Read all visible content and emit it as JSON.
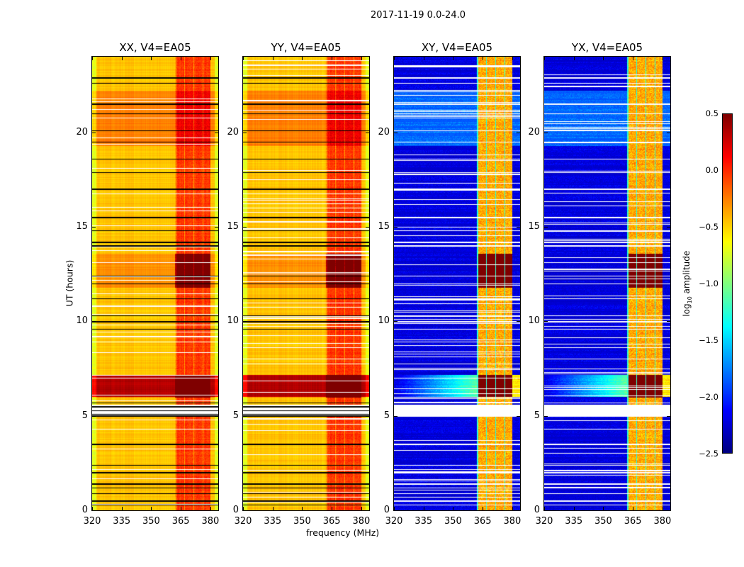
{
  "chart_data": {
    "type": "heatmap",
    "title": "2017-11-19 0.0-24.0",
    "xlabel": "frequency (MHz)",
    "ylabel": "UT (hours)",
    "xlim": [
      320,
      384
    ],
    "ylim": [
      0,
      24
    ],
    "x_ticks": [
      320,
      335,
      350,
      365,
      380
    ],
    "y_ticks": [
      0,
      5,
      10,
      15,
      20
    ],
    "panels": [
      {
        "name": "XX",
        "title": "XX, V4=EA05",
        "kind": "parallel"
      },
      {
        "name": "YY",
        "title": "YY, V4=EA05",
        "kind": "parallel"
      },
      {
        "name": "XY",
        "title": "XY, V4=EA05",
        "kind": "cross"
      },
      {
        "name": "YX",
        "title": "YX, V4=EA05",
        "kind": "cross"
      }
    ],
    "colorbar": {
      "label": "log",
      "label_sub": "10",
      "label_rest": " amplitude",
      "range": [
        -2.5,
        0.5
      ],
      "ticks": [
        "0.5",
        "0.0",
        "−0.5",
        "−1.0",
        "−1.5",
        "−2.0",
        "−2.5"
      ],
      "tick_values": [
        0.5,
        0.0,
        -0.5,
        -1.0,
        -1.5,
        -2.0,
        -2.5
      ],
      "colormap": "jet"
    },
    "features": {
      "rfi_band_mhz": [
        362,
        380
      ],
      "strong_rfi_periods_ut": [
        [
          6.0,
          7.2
        ],
        [
          11.8,
          13.6
        ]
      ],
      "elevated_period_ut": [
        19.3,
        22.2
      ],
      "flagged_rows_ut": [
        0.3,
        0.5,
        0.9,
        1.2,
        1.4,
        2.0,
        2.4,
        3.5,
        5.0,
        5.1,
        5.3,
        5.5,
        5.7,
        9.6,
        10.0,
        10.3,
        11.2,
        12.0,
        12.4,
        14.0,
        14.2,
        14.8,
        15.5,
        17.0,
        17.9,
        18.6,
        19.5,
        20.1,
        21.0,
        21.5,
        22.6,
        22.9
      ]
    }
  }
}
